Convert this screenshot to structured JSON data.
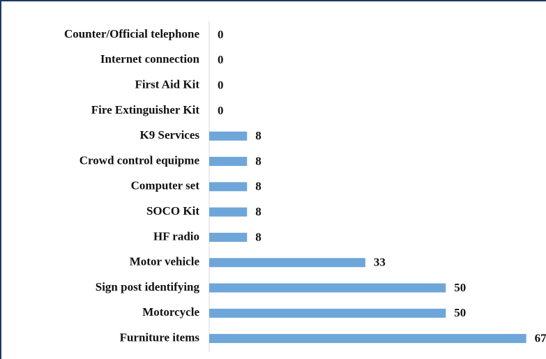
{
  "chart_data": {
    "type": "bar",
    "orientation": "horizontal",
    "categories": [
      "Counter/Official telephone",
      "Internet connection",
      "First Aid Kit",
      "Fire Extinguisher Kit",
      "K9 Services",
      "Crowd control equipme",
      "Computer set",
      "SOCO Kit",
      "HF radio",
      "Motor vehicle",
      "Sign post identifying",
      "Motorcycle",
      "Furniture items"
    ],
    "values": [
      0,
      0,
      0,
      0,
      8,
      8,
      8,
      8,
      8,
      33,
      50,
      50,
      67
    ],
    "color": "#6ea6da",
    "xlim": [
      0,
      70
    ]
  }
}
